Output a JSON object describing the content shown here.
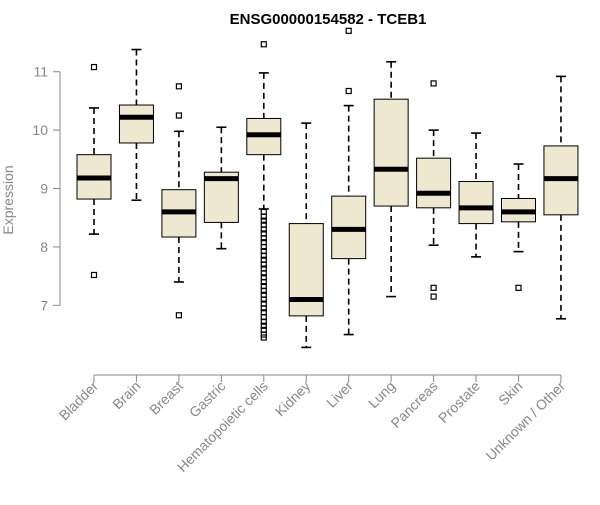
{
  "chart_data": {
    "type": "box",
    "title": "ENSG00000154582 - TCEB1",
    "ylabel": "Expression",
    "xlabel": "",
    "ylim": [
      6.15,
      11.8
    ],
    "yticks": [
      7,
      8,
      9,
      10,
      11
    ],
    "box_color": "#EEE8D0",
    "categories": [
      "Bladder",
      "Brain",
      "Breast",
      "Gastric",
      "Hematopoietic cells",
      "Kidney",
      "Liver",
      "Lung",
      "Pancreas",
      "Prostate",
      "Skin",
      "Unknown / Other"
    ],
    "boxes": [
      {
        "whislo": 8.22,
        "q1": 8.82,
        "med": 9.18,
        "q3": 9.58,
        "whishi": 10.38,
        "fliers": [
          11.08,
          7.52
        ]
      },
      {
        "whislo": 8.8,
        "q1": 9.78,
        "med": 10.22,
        "q3": 10.43,
        "whishi": 11.38,
        "fliers": []
      },
      {
        "whislo": 7.4,
        "q1": 8.17,
        "med": 8.6,
        "q3": 8.98,
        "whishi": 9.98,
        "fliers": [
          10.75,
          10.25,
          6.83
        ]
      },
      {
        "whislo": 7.97,
        "q1": 8.42,
        "med": 9.17,
        "q3": 9.28,
        "whishi": 10.05,
        "fliers": []
      },
      {
        "whislo": 8.65,
        "q1": 9.58,
        "med": 9.92,
        "q3": 10.2,
        "whishi": 10.98,
        "fliers": [
          11.47,
          8.6,
          8.52,
          8.45,
          8.38,
          8.3,
          8.23,
          8.15,
          8.08,
          8.0,
          7.93,
          7.85,
          7.78,
          7.7,
          7.63,
          7.55,
          7.48,
          7.4,
          7.33,
          7.25,
          7.18,
          7.1,
          7.03,
          6.95,
          6.88,
          6.8,
          6.72,
          6.65,
          6.58,
          6.5,
          6.45
        ]
      },
      {
        "whislo": 6.28,
        "q1": 6.82,
        "med": 7.1,
        "q3": 8.4,
        "whishi": 10.12,
        "fliers": []
      },
      {
        "whislo": 6.5,
        "q1": 7.8,
        "med": 8.3,
        "q3": 8.87,
        "whishi": 10.42,
        "fliers": [
          11.7,
          10.67
        ]
      },
      {
        "whislo": 7.15,
        "q1": 8.7,
        "med": 9.33,
        "q3": 10.53,
        "whishi": 11.17,
        "fliers": []
      },
      {
        "whislo": 8.03,
        "q1": 8.67,
        "med": 8.92,
        "q3": 9.52,
        "whishi": 10.0,
        "fliers": [
          10.8,
          7.3,
          7.15
        ]
      },
      {
        "whislo": 7.83,
        "q1": 8.4,
        "med": 8.67,
        "q3": 9.12,
        "whishi": 9.95,
        "fliers": []
      },
      {
        "whislo": 7.92,
        "q1": 8.43,
        "med": 8.6,
        "q3": 8.83,
        "whishi": 9.42,
        "fliers": [
          7.3
        ]
      },
      {
        "whislo": 6.77,
        "q1": 8.55,
        "med": 9.17,
        "q3": 9.73,
        "whishi": 10.92,
        "fliers": []
      }
    ]
  }
}
